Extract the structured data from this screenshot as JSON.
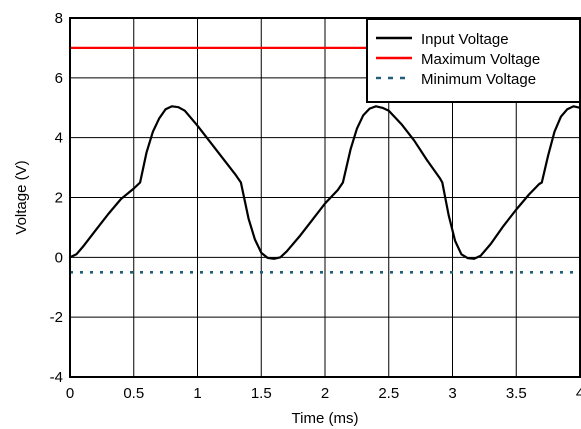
{
  "chart_data": {
    "type": "line",
    "title": "",
    "xlabel": "Time (ms)",
    "ylabel": "Voltage (V)",
    "xlim": [
      0,
      4
    ],
    "ylim": [
      -4,
      8
    ],
    "x_ticks": [
      0,
      0.5,
      1,
      1.5,
      2,
      2.5,
      3,
      3.5,
      4
    ],
    "y_ticks": [
      -4,
      -2,
      0,
      2,
      4,
      6,
      8
    ],
    "x_tick_labels": [
      "0",
      "0.5",
      "1",
      "1.5",
      "2",
      "2.5",
      "3",
      "3.5",
      "4"
    ],
    "y_tick_labels": [
      "-4",
      "-2",
      "0",
      "2",
      "4",
      "6",
      "8"
    ],
    "grid": true,
    "legend_position": "top-right",
    "series": [
      {
        "name": "Input Voltage",
        "color": "#000000",
        "style": "solid",
        "points": [
          [
            0,
            0
          ],
          [
            0.05,
            0.1
          ],
          [
            0.1,
            0.35
          ],
          [
            0.2,
            0.9
          ],
          [
            0.3,
            1.45
          ],
          [
            0.4,
            1.95
          ],
          [
            0.5,
            2.3
          ],
          [
            0.55,
            2.5
          ],
          [
            0.6,
            3.5
          ],
          [
            0.65,
            4.2
          ],
          [
            0.7,
            4.65
          ],
          [
            0.75,
            4.95
          ],
          [
            0.8,
            5.05
          ],
          [
            0.85,
            5.02
          ],
          [
            0.9,
            4.9
          ],
          [
            1.0,
            4.4
          ],
          [
            1.1,
            3.85
          ],
          [
            1.2,
            3.3
          ],
          [
            1.3,
            2.75
          ],
          [
            1.34,
            2.5
          ],
          [
            1.4,
            1.3
          ],
          [
            1.45,
            0.6
          ],
          [
            1.5,
            0.15
          ],
          [
            1.55,
            -0.02
          ],
          [
            1.6,
            -0.05
          ],
          [
            1.65,
            0.0
          ],
          [
            1.7,
            0.2
          ],
          [
            1.8,
            0.7
          ],
          [
            1.9,
            1.25
          ],
          [
            2.0,
            1.8
          ],
          [
            2.1,
            2.25
          ],
          [
            2.14,
            2.5
          ],
          [
            2.2,
            3.6
          ],
          [
            2.25,
            4.3
          ],
          [
            2.3,
            4.75
          ],
          [
            2.35,
            4.97
          ],
          [
            2.4,
            5.05
          ],
          [
            2.45,
            5.0
          ],
          [
            2.5,
            4.9
          ],
          [
            2.6,
            4.45
          ],
          [
            2.7,
            3.9
          ],
          [
            2.8,
            3.25
          ],
          [
            2.9,
            2.65
          ],
          [
            2.92,
            2.5
          ],
          [
            2.97,
            1.4
          ],
          [
            3.02,
            0.55
          ],
          [
            3.07,
            0.1
          ],
          [
            3.12,
            -0.03
          ],
          [
            3.17,
            -0.05
          ],
          [
            3.22,
            0.05
          ],
          [
            3.3,
            0.45
          ],
          [
            3.4,
            1.05
          ],
          [
            3.5,
            1.6
          ],
          [
            3.6,
            2.1
          ],
          [
            3.68,
            2.45
          ],
          [
            3.7,
            2.5
          ],
          [
            3.75,
            3.4
          ],
          [
            3.8,
            4.2
          ],
          [
            3.85,
            4.7
          ],
          [
            3.9,
            4.95
          ],
          [
            3.95,
            5.05
          ],
          [
            4.0,
            5.0
          ]
        ]
      },
      {
        "name": "Maximum Voltage",
        "color": "#ff0000",
        "style": "solid",
        "points": [
          [
            0,
            7
          ],
          [
            4,
            7
          ]
        ]
      },
      {
        "name": "Minimum Voltage",
        "color": "#1f5f7a",
        "style": "dotted",
        "points": [
          [
            0,
            -0.5
          ],
          [
            4,
            -0.5
          ]
        ]
      }
    ]
  }
}
